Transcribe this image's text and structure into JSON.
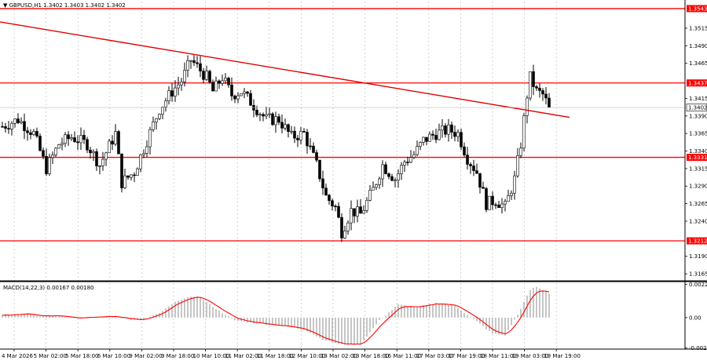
{
  "header": {
    "symbol_text": "▼ GBPUSD,H1  1.3402 1.3403 1.3402 1.3402"
  },
  "indicator": {
    "label": "MACD(14,22,3) 0.00167 0.00180"
  },
  "colors": {
    "background": "#ffffff",
    "candle": "#000000",
    "level_line": "#ff0000",
    "trend_line": "#e00000",
    "grid": "#c8c8c8",
    "macd_hist": "#a0a0a0",
    "signal": "#ff0000"
  },
  "price_axis": {
    "ticks": [
      "1.3515",
      "1.3490",
      "1.3465",
      "1.3415",
      "1.3390",
      "1.3365",
      "1.3340",
      "1.3315",
      "1.3290",
      "1.3265",
      "1.3240",
      "1.3190",
      "1.3165"
    ],
    "range": [
      1.3155,
      1.3553
    ]
  },
  "levels": [
    {
      "label": "1.3543",
      "value": 1.3543
    },
    {
      "label": "1.3437",
      "value": 1.3437
    },
    {
      "label": "1.3331",
      "value": 1.3331
    },
    {
      "label": "1.3212",
      "value": 1.3212
    }
  ],
  "current_price": {
    "label": "1.3402",
    "value": 1.3402
  },
  "trendline": {
    "start": {
      "bar": 0,
      "price": 1.3524
    },
    "end": {
      "bar": 178,
      "price": 1.3388
    }
  },
  "macd_axis": {
    "ticks": [
      "0.00228",
      "0.00",
      "-0.00208"
    ],
    "range": [
      -0.00215,
      0.00235
    ]
  },
  "time_axis": {
    "labels": [
      "4 Mar 2026",
      "5 Mar 02:00",
      "5 Mar 18:00",
      "6 Mar 10:00",
      "9 Mar 02:00",
      "9 Mar 18:00",
      "10 Mar 10:00",
      "11 Mar 02:00",
      "11 Mar 18:00",
      "12 Mar 10:00",
      "13 Mar 02:00",
      "13 Mar 18:00",
      "16 Mar 11:00",
      "17 Mar 03:00",
      "17 Mar 19:00",
      "18 Mar 11:00",
      "19 Mar 03:00",
      "19 Mar 19:00"
    ]
  },
  "chart_data": {
    "type": "candlestick",
    "symbol": "GBPUSD",
    "timeframe": "H1",
    "anchors": [
      [
        0,
        1.3375
      ],
      [
        5,
        1.3385
      ],
      [
        10,
        1.3365
      ],
      [
        14,
        1.3315
      ],
      [
        18,
        1.335
      ],
      [
        22,
        1.336
      ],
      [
        27,
        1.335
      ],
      [
        31,
        1.332
      ],
      [
        36,
        1.3365
      ],
      [
        38,
        1.3295
      ],
      [
        42,
        1.331
      ],
      [
        46,
        1.3355
      ],
      [
        50,
        1.34
      ],
      [
        54,
        1.3425
      ],
      [
        57,
        1.344
      ],
      [
        60,
        1.347
      ],
      [
        62,
        1.346
      ],
      [
        65,
        1.3445
      ],
      [
        67,
        1.3425
      ],
      [
        70,
        1.3445
      ],
      [
        73,
        1.342
      ],
      [
        76,
        1.3425
      ],
      [
        80,
        1.3405
      ],
      [
        84,
        1.3385
      ],
      [
        88,
        1.3385
      ],
      [
        92,
        1.336
      ],
      [
        96,
        1.3365
      ],
      [
        100,
        1.332
      ],
      [
        103,
        1.3275
      ],
      [
        106,
        1.326
      ],
      [
        108,
        1.3225
      ],
      [
        111,
        1.3255
      ],
      [
        114,
        1.325
      ],
      [
        118,
        1.3285
      ],
      [
        121,
        1.332
      ],
      [
        125,
        1.33
      ],
      [
        128,
        1.3325
      ],
      [
        131,
        1.3335
      ],
      [
        134,
        1.3355
      ],
      [
        138,
        1.3365
      ],
      [
        142,
        1.337
      ],
      [
        145,
        1.3365
      ],
      [
        148,
        1.333
      ],
      [
        151,
        1.331
      ],
      [
        154,
        1.3265
      ],
      [
        157,
        1.327
      ],
      [
        160,
        1.326
      ],
      [
        163,
        1.33
      ],
      [
        165,
        1.335
      ],
      [
        167,
        1.342
      ],
      [
        168,
        1.3445
      ],
      [
        170,
        1.3425
      ],
      [
        172,
        1.342
      ],
      [
        174,
        1.3402
      ]
    ],
    "macd_anchors": [
      [
        0,
        0.00015
      ],
      [
        8,
        0.0003
      ],
      [
        12,
        0.0001
      ],
      [
        18,
        0.00015
      ],
      [
        24,
        -5e-05
      ],
      [
        30,
        5e-05
      ],
      [
        36,
        0.0001
      ],
      [
        40,
        -0.0001
      ],
      [
        44,
        -0.0002
      ],
      [
        50,
        0.0003
      ],
      [
        56,
        0.0012
      ],
      [
        62,
        0.0015
      ],
      [
        68,
        0.0006
      ],
      [
        74,
        -0.0002
      ],
      [
        82,
        -0.0004
      ],
      [
        90,
        -0.0006
      ],
      [
        96,
        -0.0008
      ],
      [
        102,
        -0.0015
      ],
      [
        108,
        -0.00185
      ],
      [
        114,
        -0.0018
      ],
      [
        120,
        -0.0002
      ],
      [
        126,
        0.0009
      ],
      [
        132,
        0.0007
      ],
      [
        138,
        0.001
      ],
      [
        144,
        0.0008
      ],
      [
        150,
        -0.0001
      ],
      [
        156,
        -0.0011
      ],
      [
        160,
        -0.0012
      ],
      [
        164,
        0.0002
      ],
      [
        168,
        0.0019
      ],
      [
        170,
        0.0021
      ],
      [
        174,
        0.00167
      ]
    ],
    "bar_count": 175
  }
}
